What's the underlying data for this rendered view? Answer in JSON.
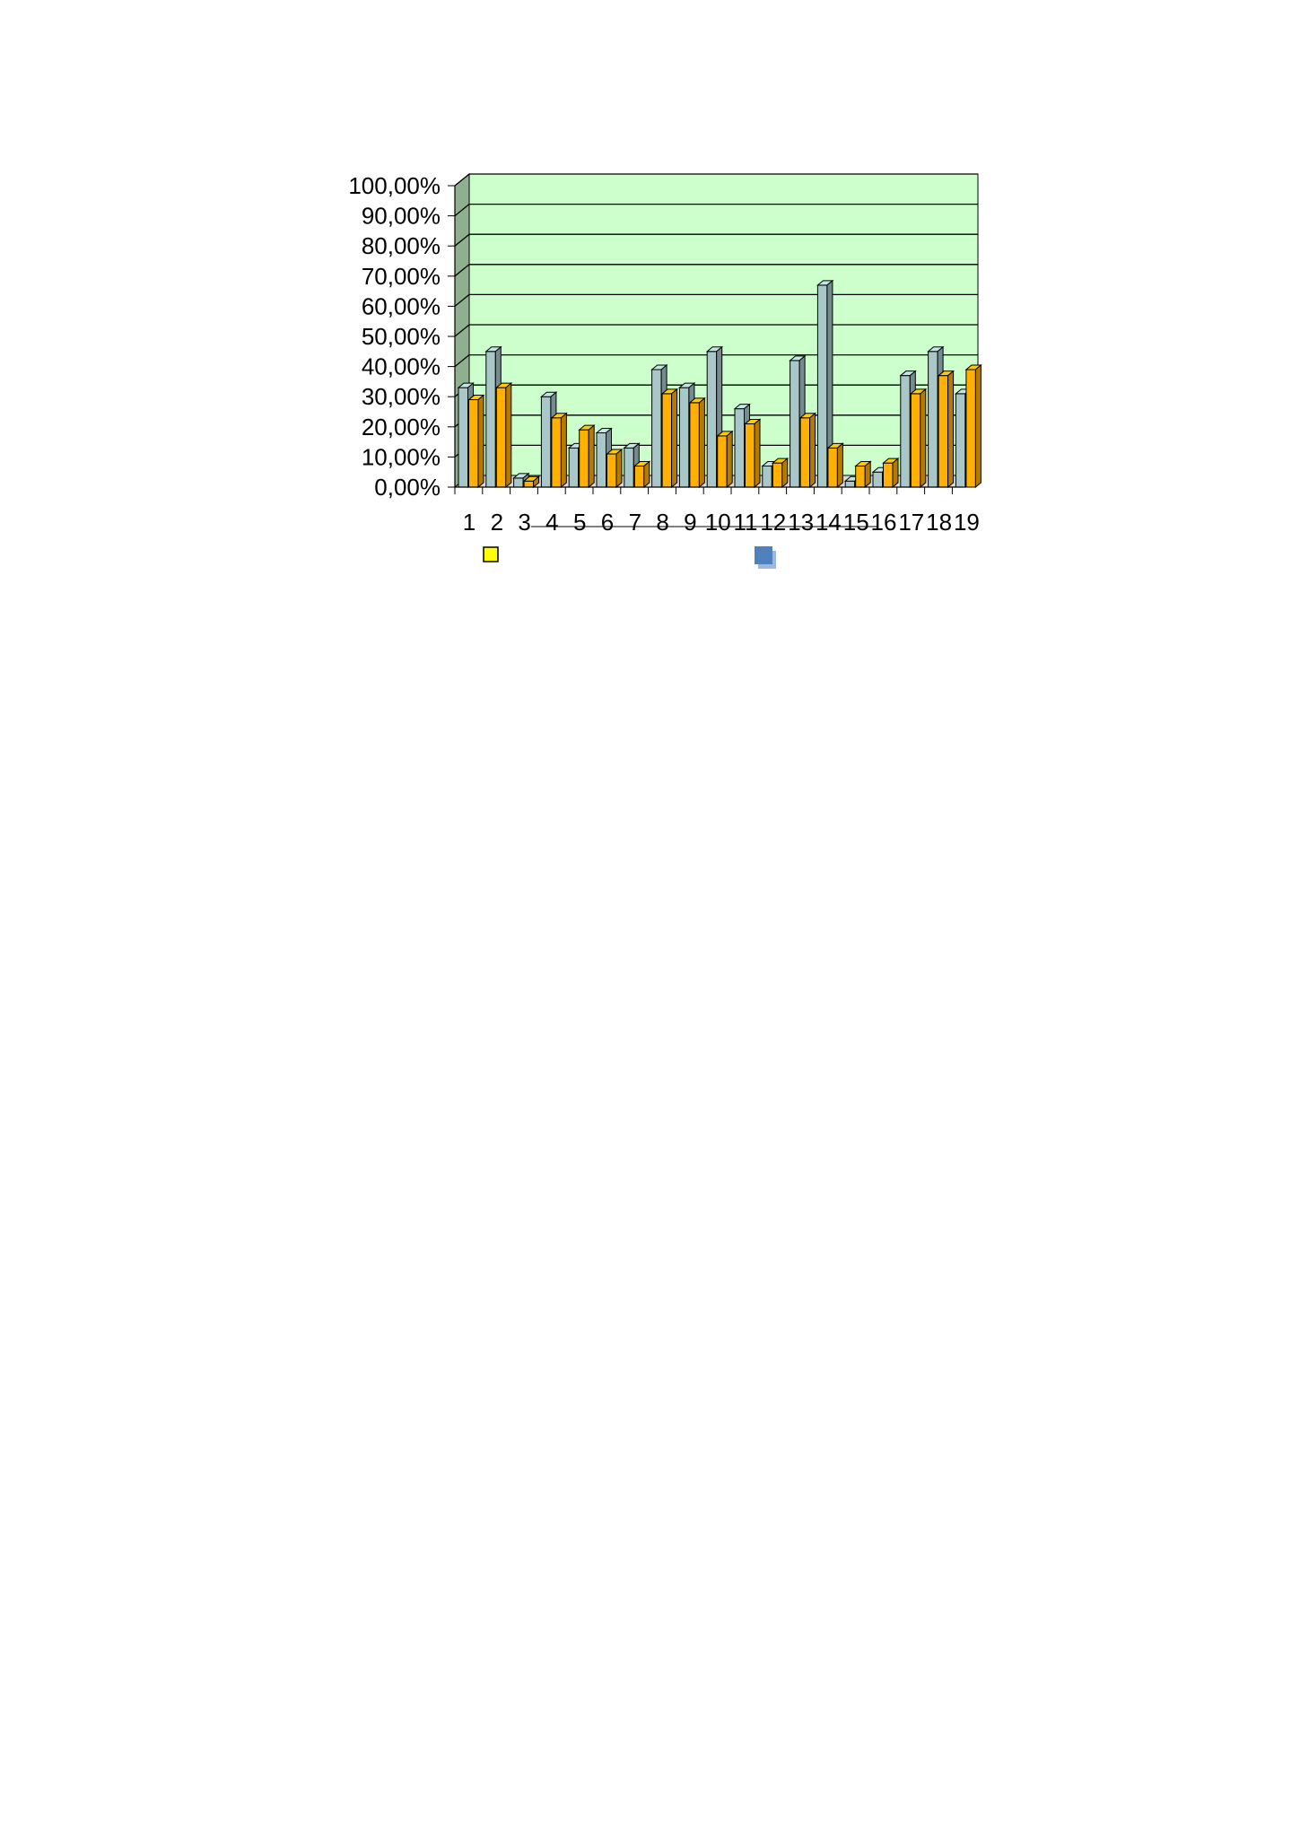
{
  "chart_data": {
    "type": "bar",
    "title": "",
    "xlabel": "",
    "ylabel": "",
    "categories": [
      "1",
      "2",
      "3",
      "4",
      "5",
      "6",
      "7",
      "8",
      "9",
      "10",
      "11",
      "12",
      "13",
      "14",
      "15",
      "16",
      "17",
      "18",
      "19"
    ],
    "ylim": [
      0,
      1
    ],
    "y_ticks": [
      "0,00%",
      "10,00%",
      "20,00%",
      "30,00%",
      "40,00%",
      "50,00%",
      "60,00%",
      "70,00%",
      "80,00%",
      "90,00%",
      "100,00%"
    ],
    "grid": true,
    "legend_position": "bottom",
    "series": [
      {
        "color": "#a9c7c9",
        "values": [
          0.33,
          0.45,
          0.03,
          0.3,
          0.13,
          0.18,
          0.13,
          0.39,
          0.33,
          0.45,
          0.26,
          0.07,
          0.42,
          0.67,
          0.02,
          0.05,
          0.37,
          0.45,
          0.31
        ]
      },
      {
        "color": "#ffb000",
        "values": [
          0.29,
          0.33,
          0.02,
          0.23,
          0.19,
          0.11,
          0.07,
          0.31,
          0.28,
          0.17,
          0.21,
          0.08,
          0.23,
          0.13,
          0.07,
          0.08,
          0.31,
          0.37,
          0.39
        ]
      }
    ],
    "colors": {
      "plot_background": "#ccffcc",
      "wall_side": "#8fb08f",
      "grid": "#000000",
      "legend_box_1": "#ffff00",
      "legend_box_2": "#4f81bd"
    }
  }
}
